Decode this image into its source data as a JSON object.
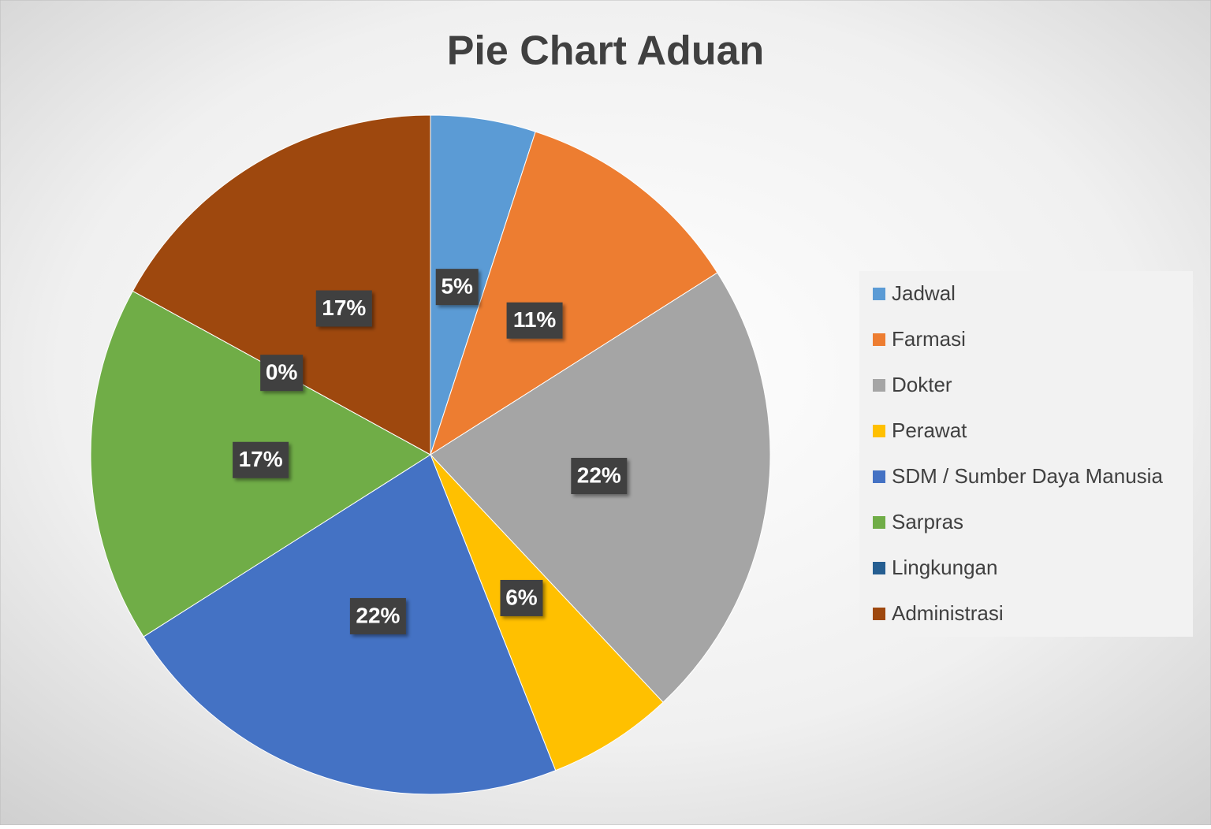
{
  "chart_data": {
    "type": "pie",
    "title": "Pie Chart Aduan",
    "categories": [
      "Jadwal",
      "Farmasi",
      "Dokter",
      "Perawat",
      "SDM / Sumber Daya Manusia",
      "Sarpras",
      "Lingkungan",
      "Administrasi"
    ],
    "values": [
      5,
      11,
      22,
      6,
      22,
      17,
      0,
      17
    ],
    "value_labels": [
      "5%",
      "11%",
      "22%",
      "6%",
      "22%",
      "17%",
      "0%",
      "17%"
    ],
    "colors": [
      "#5b9bd5",
      "#ed7d31",
      "#a5a5a5",
      "#ffc000",
      "#4472c4",
      "#70ad47",
      "#255e91",
      "#9e480e"
    ],
    "legend": "right"
  }
}
